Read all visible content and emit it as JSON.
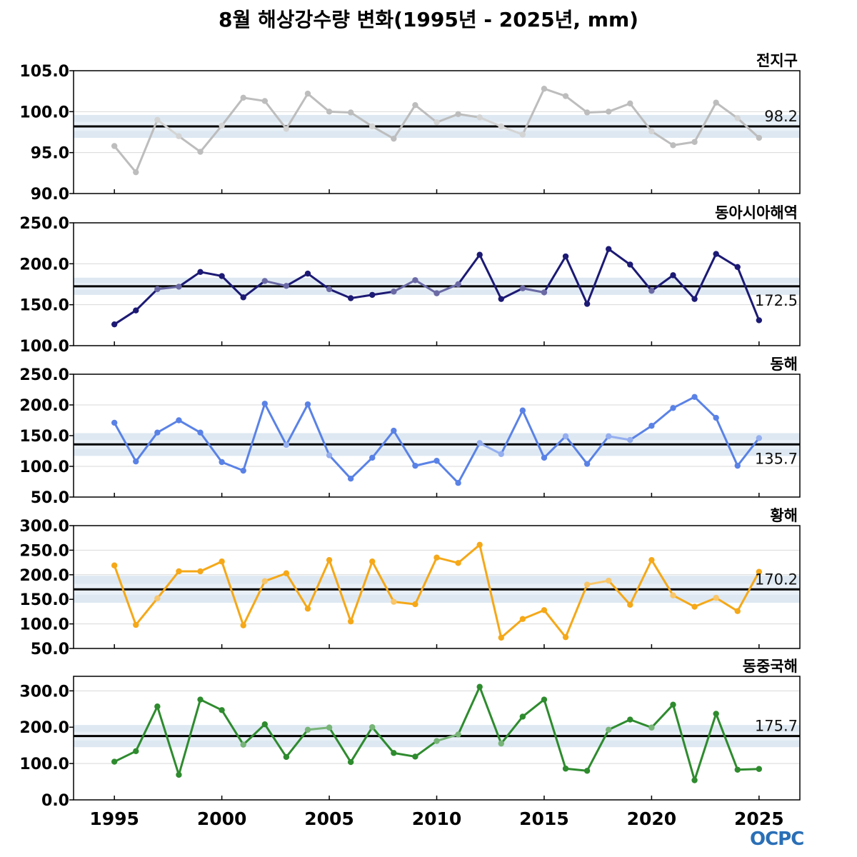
{
  "title": "8월 해상강수량 변화(1995년 - 2025년, mm)",
  "logo_text": "OCPC",
  "chart_data": {
    "type": "line",
    "x": [
      1995,
      1996,
      1997,
      1998,
      1999,
      2000,
      2001,
      2002,
      2003,
      2004,
      2005,
      2006,
      2007,
      2008,
      2009,
      2010,
      2011,
      2012,
      2013,
      2014,
      2015,
      2016,
      2017,
      2018,
      2019,
      2020,
      2021,
      2022,
      2023,
      2024,
      2025
    ],
    "xlim": [
      1993.1,
      2026.9
    ],
    "x_ticks": [
      1995,
      2000,
      2005,
      2010,
      2015,
      2020,
      2025
    ],
    "panels": [
      {
        "label": "전지구",
        "color": "#bdbdbd",
        "ylim": [
          90,
          105
        ],
        "y_ticks": [
          "90.0",
          "95.0",
          "100.0",
          "105.0"
        ],
        "mean": 98.2,
        "mean_label": "98.2",
        "band": [
          96.8,
          99.6
        ],
        "values": [
          95.8,
          92.6,
          99.0,
          97.0,
          95.1,
          98.3,
          101.7,
          101.3,
          97.9,
          102.2,
          100.0,
          99.9,
          98.2,
          96.7,
          100.8,
          98.7,
          99.7,
          99.3,
          98.2,
          97.2,
          102.8,
          101.9,
          99.9,
          100.0,
          101.0,
          97.6,
          95.9,
          96.3,
          101.1,
          99.2,
          96.8
        ]
      },
      {
        "label": "동아시아해역",
        "color": "#1c1a74",
        "ylim": [
          100,
          250
        ],
        "y_ticks": [
          "100.0",
          "150.0",
          "200.0",
          "250.0"
        ],
        "mean": 172.5,
        "mean_label": "172.5",
        "band": [
          162,
          183
        ],
        "values": [
          126,
          143,
          169,
          172,
          190,
          185,
          159,
          179,
          173,
          188,
          169,
          158,
          162,
          166,
          180,
          164,
          175,
          211,
          157,
          170,
          165,
          209,
          151,
          218,
          199,
          167,
          186,
          157,
          212,
          196,
          131
        ]
      },
      {
        "label": "동해",
        "color": "#5a82e6",
        "ylim": [
          50,
          250
        ],
        "y_ticks": [
          "50.0",
          "100.0",
          "150.0",
          "200.0",
          "250.0"
        ],
        "mean": 135.7,
        "mean_label": "135.7",
        "band": [
          117,
          154
        ],
        "values": [
          171,
          108,
          155,
          175,
          155,
          107,
          93,
          202,
          135,
          201,
          118,
          80,
          114,
          158,
          101,
          109,
          73,
          138,
          120,
          191,
          114,
          149,
          104,
          149,
          143,
          166,
          195,
          213,
          179,
          101,
          146
        ]
      },
      {
        "label": "황해",
        "color": "#f5a818",
        "ylim": [
          50,
          300
        ],
        "y_ticks": [
          "50.0",
          "100.0",
          "150.0",
          "200.0",
          "250.0",
          "300.0"
        ],
        "mean": 170.2,
        "mean_label": "170.2",
        "band": [
          143,
          198
        ],
        "values": [
          219,
          98,
          152,
          207,
          207,
          227,
          97,
          187,
          203,
          131,
          230,
          105,
          227,
          145,
          140,
          235,
          224,
          261,
          72,
          110,
          128,
          73,
          180,
          188,
          139,
          230,
          158,
          135,
          153,
          126,
          206
        ]
      },
      {
        "label": "동중국해",
        "color": "#2e8b2e",
        "ylim": [
          0,
          340
        ],
        "y_ticks": [
          "0.0",
          "100.0",
          "200.0",
          "300.0"
        ],
        "mean": 175.7,
        "mean_label": "175.7",
        "band": [
          145,
          206
        ],
        "values": [
          105,
          134,
          257,
          69,
          276,
          247,
          152,
          208,
          118,
          193,
          199,
          104,
          200,
          129,
          119,
          162,
          180,
          311,
          155,
          229,
          276,
          86,
          80,
          193,
          221,
          199,
          262,
          54,
          237,
          83,
          85
        ]
      }
    ]
  }
}
